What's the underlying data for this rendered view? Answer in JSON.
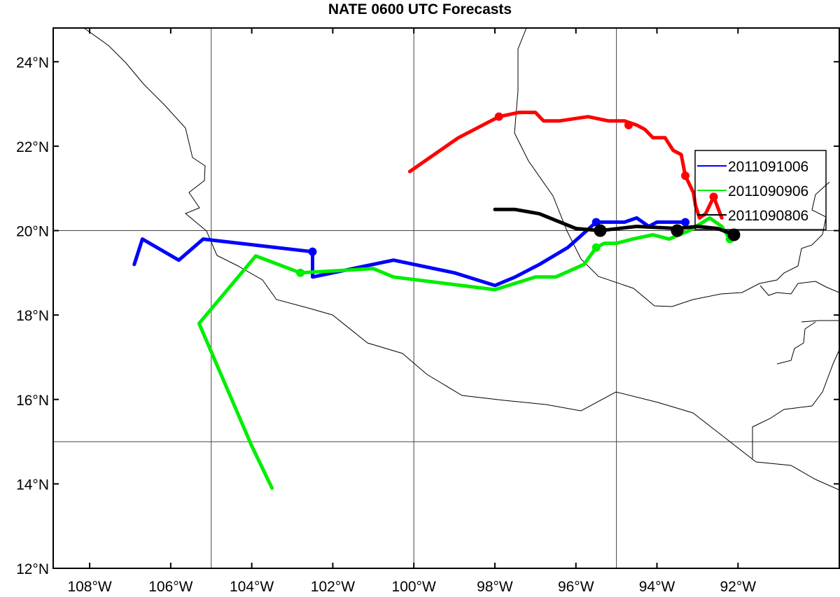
{
  "title": "NATE 0600 UTC Forecasts",
  "chart_data": {
    "type": "line",
    "title": "NATE 0600 UTC Forecasts",
    "xlim": [
      -108.9,
      -89.5
    ],
    "ylim": [
      12,
      24.8
    ],
    "x_ticks": [
      {
        "value": -108,
        "label": "108°W"
      },
      {
        "value": -106,
        "label": "106°W"
      },
      {
        "value": -104,
        "label": "104°W"
      },
      {
        "value": -102,
        "label": "102°W"
      },
      {
        "value": -100,
        "label": "100°W"
      },
      {
        "value": -98,
        "label": "98°W"
      },
      {
        "value": -96,
        "label": "96°W"
      },
      {
        "value": -94,
        "label": "94°W"
      },
      {
        "value": -92,
        "label": "92°W"
      }
    ],
    "y_ticks": [
      {
        "value": 12,
        "label": "12°N"
      },
      {
        "value": 14,
        "label": "14°N"
      },
      {
        "value": 16,
        "label": "16°N"
      },
      {
        "value": 18,
        "label": "18°N"
      },
      {
        "value": 20,
        "label": "20°N"
      },
      {
        "value": 22,
        "label": "22°N"
      },
      {
        "value": 24,
        "label": "24°N"
      }
    ],
    "grid_lon": [
      -105,
      -100,
      -95
    ],
    "grid_lat": [
      15,
      20
    ],
    "legend_position": "upper-right",
    "legend": [
      {
        "label": "2011091006",
        "color": "#0000ff"
      },
      {
        "label": "2011090906",
        "color": "#00ee00"
      },
      {
        "label": "2011090806",
        "color": "#000000"
      }
    ],
    "series": [
      {
        "color": "#ff0000",
        "points": [
          [
            -92.4,
            20.3
          ],
          [
            -92.6,
            20.8
          ],
          [
            -92.8,
            20.4
          ],
          [
            -92.95,
            20.3
          ],
          [
            -93.05,
            20.6
          ],
          [
            -93.1,
            20.9
          ],
          [
            -93.2,
            21.1
          ],
          [
            -93.3,
            21.3
          ],
          [
            -93.4,
            21.8
          ],
          [
            -93.6,
            21.9
          ],
          [
            -93.8,
            22.2
          ],
          [
            -94.1,
            22.2
          ],
          [
            -94.3,
            22.4
          ],
          [
            -94.5,
            22.5
          ],
          [
            -94.8,
            22.6
          ],
          [
            -95.2,
            22.6
          ],
          [
            -95.7,
            22.7
          ],
          [
            -96.4,
            22.6
          ],
          [
            -96.8,
            22.6
          ],
          [
            -97,
            22.8
          ],
          [
            -97.4,
            22.8
          ],
          [
            -97.9,
            22.7
          ],
          [
            -98.5,
            22.4
          ],
          [
            -98.9,
            22.2
          ],
          [
            -99.5,
            21.8
          ],
          [
            -100.1,
            21.4
          ]
        ],
        "markers": [
          [
            -92.6,
            20.8
          ],
          [
            -93.3,
            21.3
          ],
          [
            -94.7,
            22.5
          ],
          [
            -97.9,
            22.7
          ]
        ]
      },
      {
        "color": "#0000ff",
        "points": [
          [
            -93.3,
            20.2
          ],
          [
            -93.7,
            20.2
          ],
          [
            -94,
            20.2
          ],
          [
            -94.2,
            20.1
          ],
          [
            -94.5,
            20.3
          ],
          [
            -94.8,
            20.2
          ],
          [
            -95.1,
            20.2
          ],
          [
            -95.5,
            20.2
          ],
          [
            -96.2,
            19.6
          ],
          [
            -96.9,
            19.2
          ],
          [
            -97.5,
            18.9
          ],
          [
            -98,
            18.7
          ],
          [
            -99,
            19
          ],
          [
            -100.5,
            19.3
          ],
          [
            -102.5,
            18.9
          ],
          [
            -102.5,
            19.5
          ],
          [
            -105.2,
            19.8
          ],
          [
            -105.8,
            19.3
          ],
          [
            -106.7,
            19.8
          ],
          [
            -106.9,
            19.2
          ]
        ],
        "markers": [
          [
            -93.3,
            20.2
          ],
          [
            -95.5,
            20.2
          ],
          [
            -102.5,
            19.5
          ]
        ]
      },
      {
        "color": "#00ee00",
        "points": [
          [
            -92.2,
            19.8
          ],
          [
            -92.4,
            20.1
          ],
          [
            -92.7,
            20.3
          ],
          [
            -93.2,
            20.0
          ],
          [
            -93.7,
            19.8
          ],
          [
            -94.1,
            19.9
          ],
          [
            -94.6,
            19.8
          ],
          [
            -95,
            19.7
          ],
          [
            -95.3,
            19.7
          ],
          [
            -95.5,
            19.6
          ],
          [
            -95.8,
            19.2
          ],
          [
            -96.5,
            18.9
          ],
          [
            -97,
            18.9
          ],
          [
            -98,
            18.6
          ],
          [
            -100.5,
            18.9
          ],
          [
            -101,
            19.1
          ],
          [
            -102.8,
            19
          ],
          [
            -103.9,
            19.4
          ],
          [
            -105.3,
            17.8
          ],
          [
            -104,
            14.9
          ],
          [
            -103.5,
            13.9
          ]
        ],
        "markers": [
          [
            -92.2,
            19.8
          ],
          [
            -95.5,
            19.6
          ],
          [
            -102.8,
            19
          ]
        ]
      },
      {
        "color": "#000000",
        "points": [
          [
            -92.1,
            19.9
          ],
          [
            -92.5,
            20.05
          ],
          [
            -93,
            20.1
          ],
          [
            -93.5,
            20.05
          ],
          [
            -94.5,
            20.1
          ],
          [
            -95.4,
            20.0
          ],
          [
            -96,
            20.05
          ],
          [
            -96.9,
            20.4
          ],
          [
            -97.5,
            20.5
          ],
          [
            -98,
            20.5
          ]
        ],
        "markers": [
          [
            -92.1,
            19.9
          ],
          [
            -93.5,
            20.0
          ],
          [
            -95.4,
            20.0
          ]
        ]
      }
    ]
  }
}
